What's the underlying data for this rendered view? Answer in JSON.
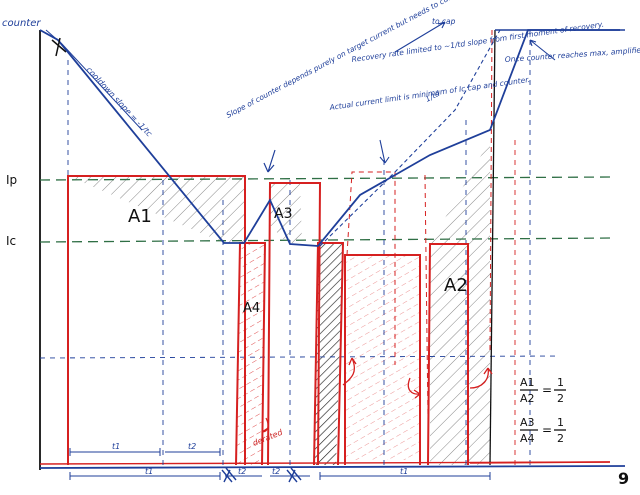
{
  "colors": {
    "ink_blue": "#1f3f9a",
    "ink_red": "#d62020",
    "ink_green": "#2f6f45",
    "ink_black": "#111111"
  },
  "labels": {
    "counter": "counter",
    "ip": "Ip",
    "ic": "Ic",
    "cooldown_slope": "cooldown slope = -1/tc",
    "slope_note": "Slope of counter depends purely on target current but needs to current limit when T>Tc event occurs e.g.",
    "recovery_note": "Recovery rate limited to ~1/td slope from first moment of recovery.",
    "to_cap": "to cap",
    "actual_current_note": "Actual current limit is minimum of Ic cap and counter.",
    "once_counter_note": "Once counter reaches max, amplifier is capable of full peak performance duration",
    "one_over": "1/td",
    "area_a1": "A1",
    "area_a2": "A2",
    "area_a3": "A3",
    "area_a4": "A4",
    "derated": "derated",
    "ratio1_num": "A1",
    "ratio1_den": "A2",
    "ratio1_val_num": "1",
    "ratio1_val_den": "2",
    "ratio2_num": "A3",
    "ratio2_den": "A4",
    "ratio2_val_num": "1",
    "ratio2_val_den": "2",
    "equals": "=",
    "t1_a": "t1",
    "t2_a": "t2",
    "t1_b": "t1",
    "t2_b": "t2",
    "t2_c": "t2",
    "t1_c": "t1",
    "page_number": "9"
  }
}
